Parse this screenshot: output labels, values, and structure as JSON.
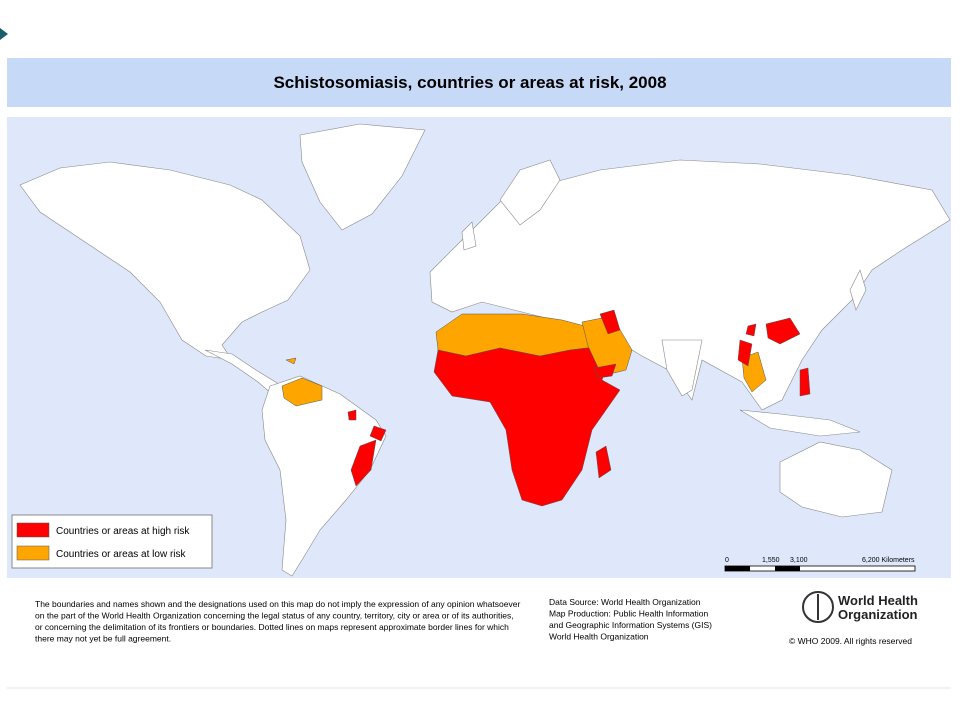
{
  "header": {
    "title": "Schistosomiasis, countries or areas at risk, 2008"
  },
  "legend": {
    "items": [
      {
        "label": "Countries or areas at high risk",
        "color": "#ff0000"
      },
      {
        "label": "Countries or areas at low risk",
        "color": "#ffa500"
      }
    ]
  },
  "scale": {
    "labels": [
      "0",
      "1,550",
      "3,100",
      "6,200 Kilometers"
    ]
  },
  "footer": {
    "disclaimer": [
      "The boundaries and names shown and the designations used on this map do not imply the expression of any opinion whatsoever",
      "on the part of the World Health Organization concerning the legal status of any country, territory, city or area or of its authorities,",
      "or concerning the delimitation of its frontiers or boundaries.  Dotted lines on maps represent approximate border lines for which",
      "there may not yet be full agreement."
    ],
    "source": [
      "Data Source: World Health Organization",
      "Map Production: Public Health Information",
      "and Geographic Information Systems (GIS)",
      "World Health Organization"
    ],
    "logo": [
      "World Health",
      "Organization"
    ],
    "copyright": "© WHO 2009. All rights reserved"
  }
}
